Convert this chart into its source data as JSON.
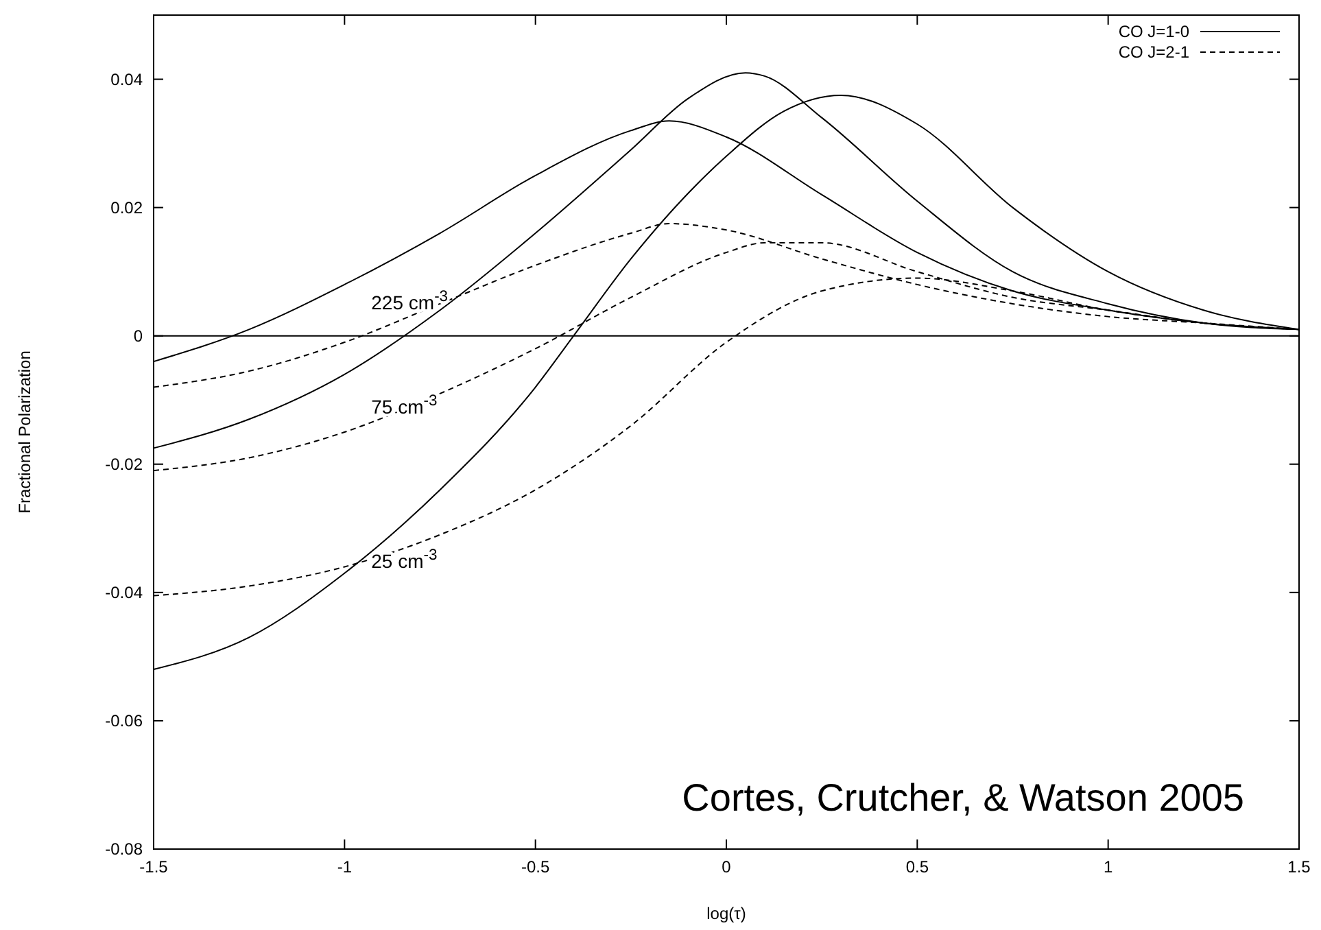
{
  "chart_data": {
    "type": "line",
    "xlabel": "log(τ)",
    "ylabel": "Fractional Polarization",
    "xlim": [
      -1.5,
      1.5
    ],
    "xticks": [
      -1.5,
      -1,
      -0.5,
      0,
      0.5,
      1,
      1.5
    ],
    "ylim": [
      -0.08,
      0.05
    ],
    "yticks": [
      -0.08,
      -0.06,
      -0.04,
      -0.02,
      0,
      0.02,
      0.04
    ],
    "grid": false,
    "legend": "top right",
    "ref_lines": [
      {
        "axis": "y",
        "value": 0,
        "color": "#000000"
      }
    ],
    "annotations": [
      "225 cm$^{-3}$",
      "75 cm$^{-3}$",
      "25 cm$^{-3}$",
      "Cortes, Crutcher, & Watson 2005"
    ],
    "series": [
      {
        "name": "CO J=1-0",
        "color": "#000000",
        "line_style": "solid",
        "x": [
          -1.5,
          -1.25,
          -1,
          -0.75,
          -0.5,
          -0.25,
          -0.15,
          0,
          0.25,
          0.5,
          0.75,
          1,
          1.25,
          1.5
        ],
        "values": [
          -0.004,
          0.001,
          0.008,
          0.016,
          0.025,
          0.032,
          0.0335,
          0.031,
          0.022,
          0.013,
          0.007,
          0.004,
          0.002,
          0.001
        ]
      },
      {
        "color": "#000000",
        "line_style": "solid",
        "x": [
          -1.5,
          -1.25,
          -1,
          -0.75,
          -0.5,
          -0.25,
          -0.1,
          0.05,
          0.1,
          0.25,
          0.5,
          0.75,
          1,
          1.25,
          1.5
        ],
        "values": [
          -0.0175,
          -0.013,
          -0.006,
          0.004,
          0.016,
          0.029,
          0.037,
          0.041,
          0.0405,
          0.034,
          0.021,
          0.01,
          0.005,
          0.002,
          0.001
        ]
      },
      {
        "color": "#000000",
        "line_style": "solid",
        "x": [
          -1.5,
          -1.25,
          -1,
          -0.75,
          -0.5,
          -0.4,
          -0.25,
          0,
          0.15,
          0.3,
          0.5,
          0.75,
          1,
          1.25,
          1.5
        ],
        "values": [
          -0.052,
          -0.047,
          -0.037,
          -0.024,
          -0.008,
          0,
          0.012,
          0.028,
          0.035,
          0.0375,
          0.033,
          0.02,
          0.01,
          0.004,
          0.001
        ]
      },
      {
        "name": "CO J=2-1",
        "color": "#000000",
        "line_style": "dashed",
        "x": [
          -1.5,
          -1.25,
          -1,
          -0.75,
          -0.5,
          -0.25,
          -0.15,
          0,
          0.25,
          0.5,
          0.75,
          1,
          1.25,
          1.5
        ],
        "values": [
          -0.008,
          -0.0055,
          -0.001,
          0.005,
          0.011,
          0.016,
          0.0175,
          0.0165,
          0.012,
          0.008,
          0.005,
          0.003,
          0.002,
          0.001
        ]
      },
      {
        "color": "#000000",
        "line_style": "dashed",
        "x": [
          -1.5,
          -1.25,
          -1,
          -0.75,
          -0.5,
          -0.25,
          0,
          0.1,
          0.25,
          0.5,
          0.75,
          1,
          1.25,
          1.5
        ],
        "values": [
          -0.021,
          -0.019,
          -0.015,
          -0.009,
          -0.002,
          0.006,
          0.013,
          0.0145,
          0.0145,
          0.01,
          0.006,
          0.004,
          0.002,
          0.001
        ]
      },
      {
        "color": "#000000",
        "line_style": "dashed",
        "x": [
          -1.5,
          -1.25,
          -1,
          -0.75,
          -0.5,
          -0.25,
          0,
          0.25,
          0.5,
          0.75,
          1,
          1.25,
          1.5
        ],
        "values": [
          -0.0405,
          -0.039,
          -0.036,
          -0.031,
          -0.024,
          -0.014,
          -0.001,
          0.007,
          0.009,
          0.007,
          0.004,
          0.002,
          0.001
        ]
      }
    ]
  }
}
